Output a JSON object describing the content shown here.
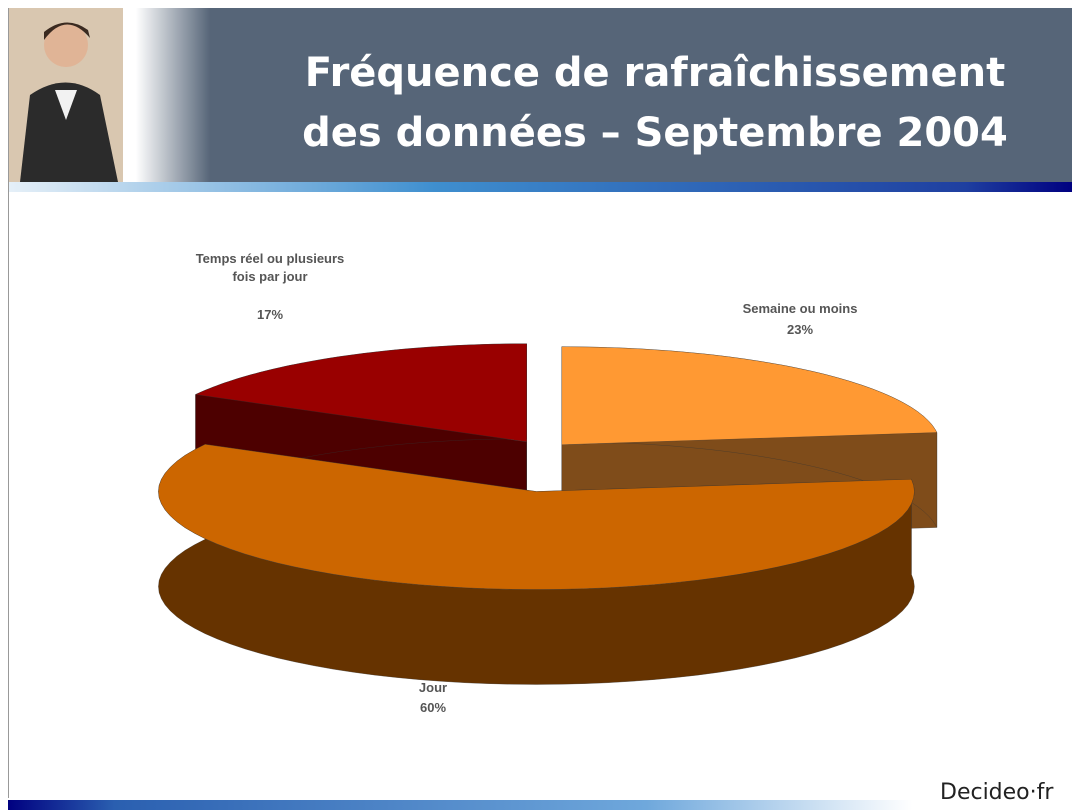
{
  "chart_data": {
    "type": "pie3d",
    "title": [
      "Fréquence de rafraîchissement",
      "des données – Septembre 2004"
    ],
    "categories": [
      "Semaine ou moins",
      "Jour",
      "Temps réel ou plusieurs fois par jour"
    ],
    "values": [
      23,
      60,
      17
    ],
    "value_labels": [
      "23%",
      "60%",
      "17%"
    ],
    "colors": [
      "#ff9933",
      "#cc6600",
      "#990000"
    ],
    "side_colors": [
      "#7f4c1a",
      "#663300",
      "#4d0000"
    ]
  },
  "logo": "Decideo·fr"
}
